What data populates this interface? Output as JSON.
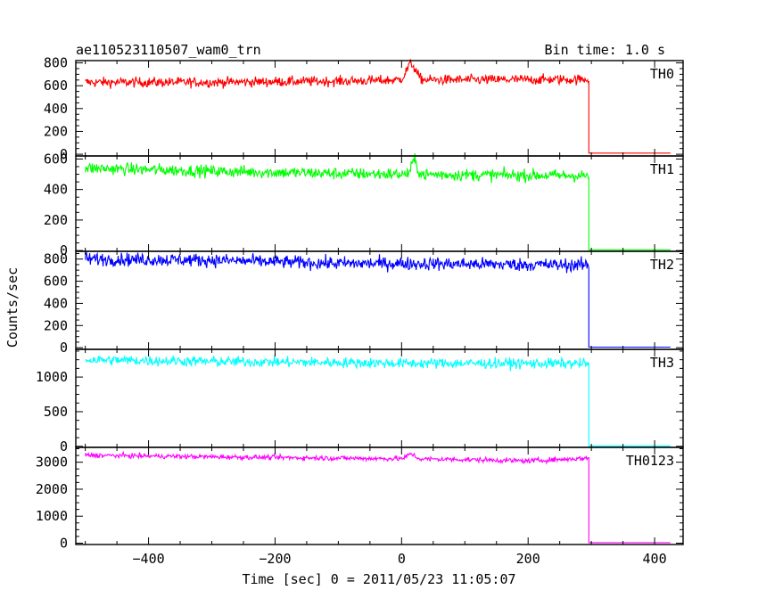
{
  "header": {
    "title": "ae110523110507_wam0_trn",
    "bin_time": "Bin time: 1.0 s"
  },
  "chart_data": {
    "type": "line",
    "xlabel": "Time [sec] 0 = 2011/05/23 11:05:07",
    "ylabel": "Counts/sec",
    "xlim": [
      -515,
      445
    ],
    "x_ticks": [
      -400,
      -200,
      0,
      200,
      400
    ],
    "x_tick_labels": [
      "−400",
      "−200",
      "0",
      "200",
      "400"
    ],
    "x_start": -500,
    "x_end": 425,
    "drop_time": 296,
    "panels": [
      {
        "name": "TH0",
        "color": "#ff0000",
        "ylim": [
          -15,
          820
        ],
        "y_ticks": [
          0,
          200,
          400,
          600,
          800
        ],
        "y_tick_labels": [
          "0",
          "200",
          "400",
          "600",
          "800"
        ],
        "levels": [
          [
            -500,
            630
          ],
          [
            -300,
            630
          ],
          [
            -100,
            640
          ],
          [
            0,
            650
          ],
          [
            296,
            655
          ]
        ],
        "after": 10,
        "noise": 22,
        "bump": {
          "x": 15,
          "height": 140,
          "width": 10
        }
      },
      {
        "name": "TH1",
        "color": "#00ff00",
        "ylim": [
          -5,
          620
        ],
        "y_ticks": [
          0,
          200,
          400,
          600
        ],
        "y_tick_labels": [
          "0",
          "200",
          "400",
          "600"
        ],
        "levels": [
          [
            -500,
            540
          ],
          [
            -300,
            520
          ],
          [
            -100,
            505
          ],
          [
            0,
            500
          ],
          [
            296,
            490
          ]
        ],
        "after": 5,
        "noise": 20,
        "bump": {
          "x": 20,
          "height": 90,
          "width": 6
        }
      },
      {
        "name": "TH2",
        "color": "#0000ff",
        "ylim": [
          -15,
          870
        ],
        "y_ticks": [
          0,
          200,
          400,
          600,
          800
        ],
        "y_tick_labels": [
          "0",
          "200",
          "400",
          "600",
          "800"
        ],
        "levels": [
          [
            -500,
            800
          ],
          [
            -300,
            790
          ],
          [
            -100,
            760
          ],
          [
            0,
            760
          ],
          [
            296,
            745
          ]
        ],
        "after": 5,
        "noise": 30,
        "bump": {
          "x": 15,
          "height": 0,
          "width": 6
        }
      },
      {
        "name": "TH3",
        "color": "#00ffff",
        "ylim": [
          -15,
          1400
        ],
        "y_ticks": [
          0,
          500,
          1000
        ],
        "y_tick_labels": [
          "0",
          "500",
          "1000"
        ],
        "levels": [
          [
            -500,
            1250
          ],
          [
            -300,
            1225
          ],
          [
            -100,
            1210
          ],
          [
            0,
            1200
          ],
          [
            296,
            1195
          ]
        ],
        "after": 5,
        "noise": 38,
        "bump": {
          "x": 15,
          "height": 0,
          "width": 6
        }
      },
      {
        "name": "TH0123",
        "color": "#ff00ff",
        "ylim": [
          -50,
          3550
        ],
        "y_ticks": [
          0,
          1000,
          2000,
          3000
        ],
        "y_tick_labels": [
          "0",
          "1000",
          "2000",
          "3000"
        ],
        "levels": [
          [
            -500,
            3260
          ],
          [
            -300,
            3200
          ],
          [
            -100,
            3150
          ],
          [
            0,
            3130
          ],
          [
            100,
            3100
          ],
          [
            200,
            3050
          ],
          [
            296,
            3150
          ]
        ],
        "after": 20,
        "noise": 45,
        "bump": {
          "x": 15,
          "height": 180,
          "width": 8
        }
      }
    ]
  }
}
